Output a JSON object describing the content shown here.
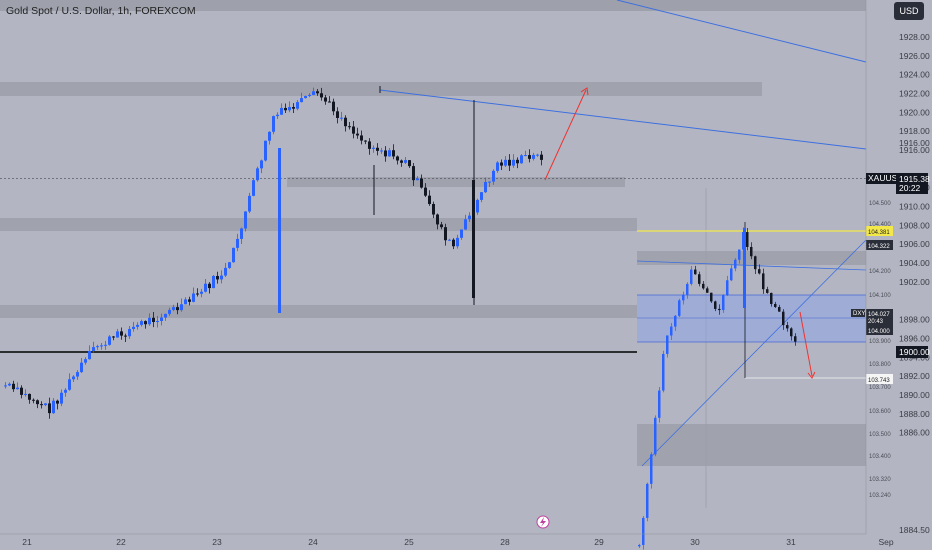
{
  "header": {
    "title": "Gold Spot / U.S. Dollar, 1h, FOREXCOM",
    "currency": "USD"
  },
  "chart_data": [
    {
      "type": "candlestick",
      "symbol": "XAUUSD",
      "timeframe": "1h",
      "ylim": [
        1884,
        1931
      ],
      "y_ticks": [
        1884.5,
        1886.0,
        1888.0,
        1890.0,
        1892.0,
        1894.0,
        1896.0,
        1898.0,
        1900.0,
        1902.0,
        1904.0,
        1906.0,
        1908.0,
        1910.0,
        1912.0,
        1914.0,
        1916.0,
        1918.0,
        1920.0,
        1922.0,
        1924.0,
        1926.0,
        1928.0
      ],
      "x_ticks": [
        "21",
        "22",
        "23",
        "24",
        "25",
        "28",
        "29",
        "30",
        "31",
        "Sep"
      ],
      "last_price": "1915.38",
      "countdown": "20:22",
      "marked_level": "1900.00",
      "price_label": "XAUUSD",
      "approx_path": [
        [
          "21",
          1891.0
        ],
        [
          "21.5",
          1888.5
        ],
        [
          "22",
          1895.0
        ],
        [
          "22.5",
          1897.5
        ],
        [
          "23",
          1899.5
        ],
        [
          "23.5",
          1903.5
        ],
        [
          "24",
          1919.5
        ],
        [
          "24.5",
          1922.0
        ],
        [
          "25",
          1917.0
        ],
        [
          "25.5",
          1914.5
        ],
        [
          "27.7",
          1905.5
        ],
        [
          "28",
          1914.5
        ],
        [
          "28.3",
          1915.4
        ]
      ]
    },
    {
      "type": "candlestick",
      "symbol": "DXY",
      "y_ticks": [
        "104.500",
        "104.400",
        "104.300",
        "104.200",
        "104.100",
        "103.900",
        "103.800",
        "103.700",
        "103.600",
        "103.500",
        "103.400",
        "103.320",
        "103.240"
      ],
      "labels": {
        "symbol": "DXY",
        "last": "104.027",
        "countdown": "20:43",
        "level_yellow": "104.381",
        "level_2": "104.322",
        "level_3": "104.000",
        "target": "103.743"
      },
      "approx_path": [
        [
          "29.4",
          103.33
        ],
        [
          "29.8",
          104.03
        ],
        [
          "30.1",
          104.26
        ],
        [
          "30.3",
          104.12
        ],
        [
          "30.5",
          104.38
        ],
        [
          "30.7",
          104.16
        ],
        [
          "31",
          104.03
        ]
      ]
    }
  ],
  "colors": {
    "background": "#b3b6c2",
    "up": "#2962ff",
    "down": "#131722",
    "trendline": "#3d6fe0",
    "arrow": "#f0312f",
    "zone": "#9c9fa9"
  }
}
